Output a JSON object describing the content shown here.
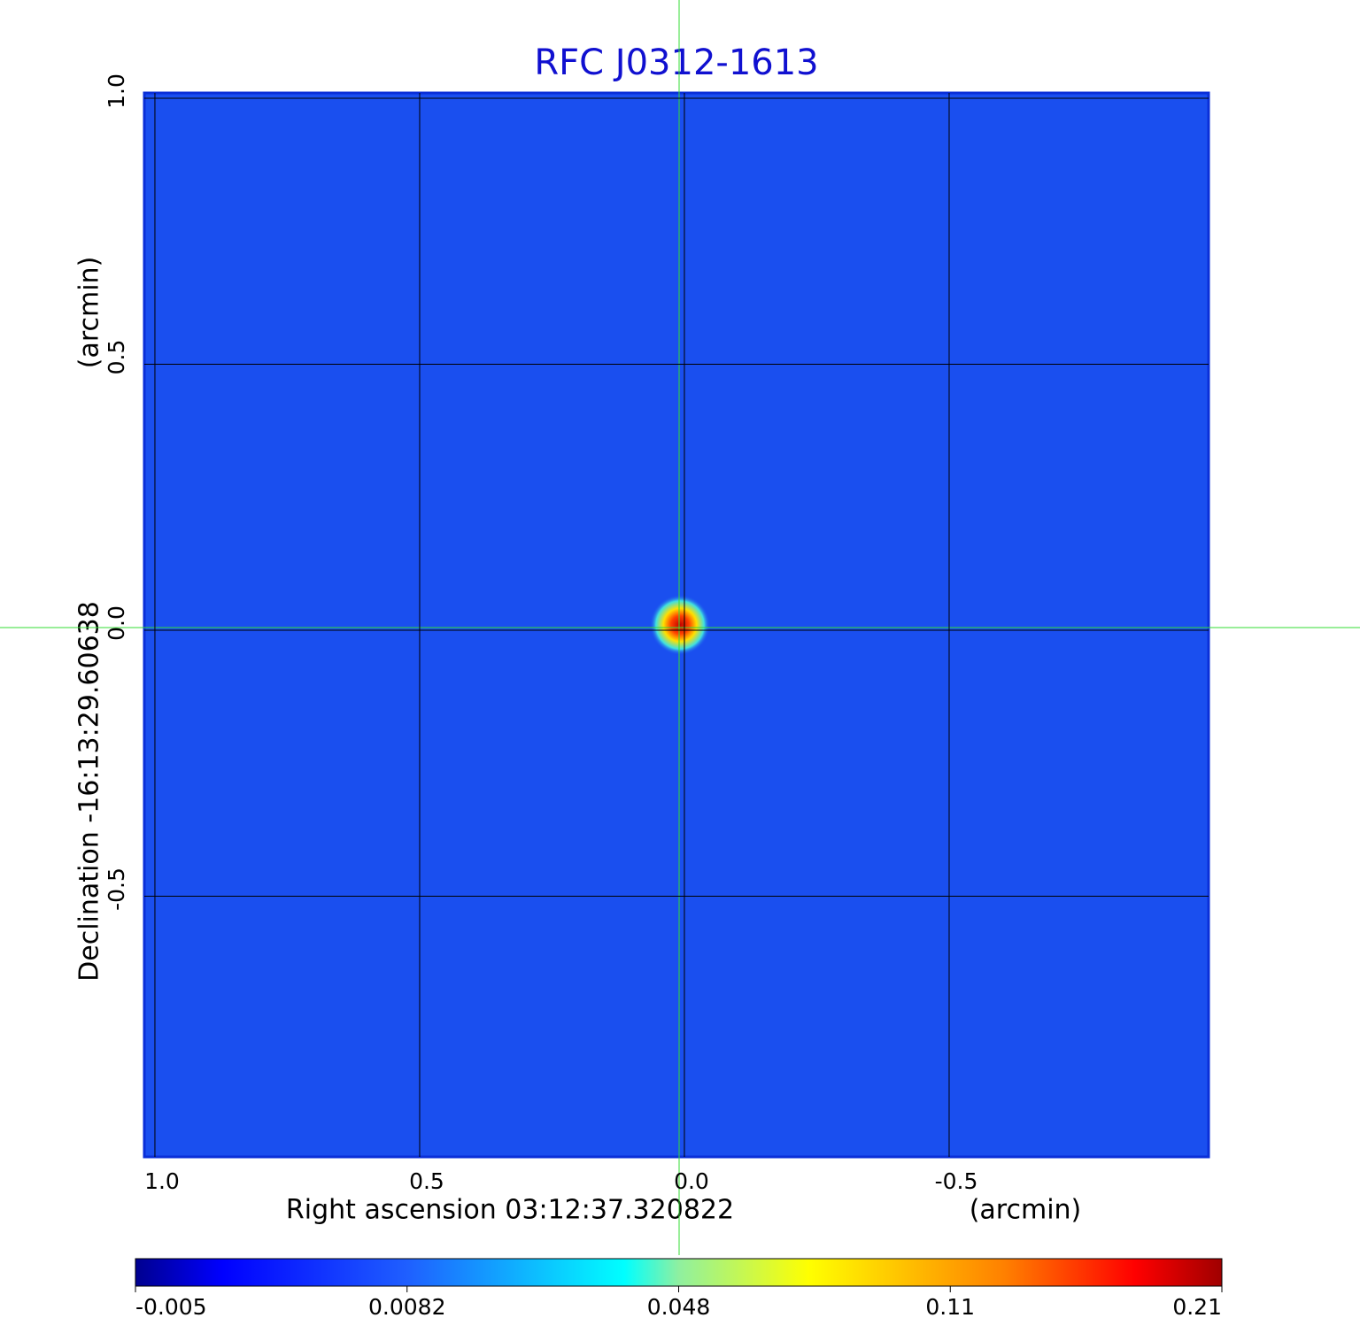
{
  "chart_data": {
    "type": "image",
    "title": "RFC J0312-1613",
    "x_label": "Right ascension  03:12:37.320822",
    "x_unit": "(arcmin)",
    "y_label": "Declination  -16:13:29.60638",
    "y_unit": "(arcmin)",
    "xlim": [
      1.02,
      -0.99
    ],
    "ylim": [
      -0.99,
      1.01
    ],
    "xticks": [
      {
        "value": 1,
        "label": "1.0"
      },
      0.5,
      {
        "value": 0,
        "label": "0.0"
      },
      -0.5
    ],
    "yticks": [
      {
        "value": 1,
        "label": "1.0"
      },
      0.5,
      {
        "value": 0,
        "label": "0.0"
      },
      -0.5
    ],
    "grid": true,
    "colorbar_ticks": [
      -0.005,
      0.0082,
      0.048,
      0.11,
      0.21
    ]
  }
}
